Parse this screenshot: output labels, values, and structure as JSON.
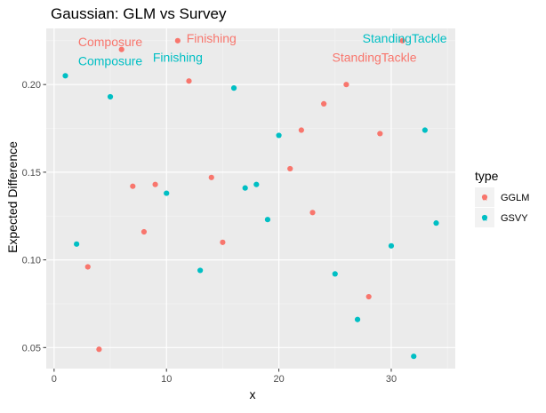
{
  "chart_data": {
    "type": "scatter",
    "title": "Gaussian: GLM vs Survey",
    "xlabel": "x",
    "ylabel": "Expected Difference",
    "xlim": [
      -0.7,
      35.7
    ],
    "ylim": [
      0.038,
      0.232
    ],
    "x_ticks": [
      0,
      10,
      20,
      30
    ],
    "y_ticks": [
      0.05,
      0.1,
      0.15,
      0.2
    ],
    "y_tick_labels": [
      "0.05",
      "0.10",
      "0.15",
      "0.20"
    ],
    "grid": true,
    "legend": {
      "title": "type",
      "position": "right"
    },
    "series": [
      {
        "name": "GGLM",
        "color": "#F8766D",
        "x": [
          3,
          4,
          6,
          7,
          8,
          9,
          11,
          12,
          14,
          15,
          21,
          22,
          23,
          24,
          26,
          28,
          29,
          31
        ],
        "y": [
          0.096,
          0.049,
          0.22,
          0.142,
          0.116,
          0.143,
          0.225,
          0.202,
          0.147,
          0.11,
          0.152,
          0.174,
          0.127,
          0.189,
          0.2,
          0.079,
          0.172,
          0.225
        ]
      },
      {
        "name": "GSVY",
        "color": "#00BFC4",
        "x": [
          1,
          2,
          5,
          10,
          13,
          16,
          17,
          18,
          19,
          20,
          25,
          27,
          30,
          32,
          33,
          34
        ],
        "y": [
          0.205,
          0.109,
          0.193,
          0.138,
          0.094,
          0.198,
          0.141,
          0.143,
          0.123,
          0.171,
          0.092,
          0.066,
          0.108,
          0.045,
          0.174,
          0.121
        ]
      }
    ],
    "annotations": [
      {
        "text": "Composure",
        "series": "GGLM",
        "x": 5,
        "y": 0.2245
      },
      {
        "text": "Finishing",
        "series": "GGLM",
        "x": 14,
        "y": 0.2265
      },
      {
        "text": "StandingTackle",
        "series": "GGLM",
        "x": 28.5,
        "y": 0.2155
      },
      {
        "text": "Composure",
        "series": "GSVY",
        "x": 5,
        "y": 0.2135
      },
      {
        "text": "Finishing",
        "series": "GSVY",
        "x": 11,
        "y": 0.2155
      },
      {
        "text": "StandingTackle",
        "series": "GSVY",
        "x": 31.2,
        "y": 0.2265
      }
    ]
  }
}
